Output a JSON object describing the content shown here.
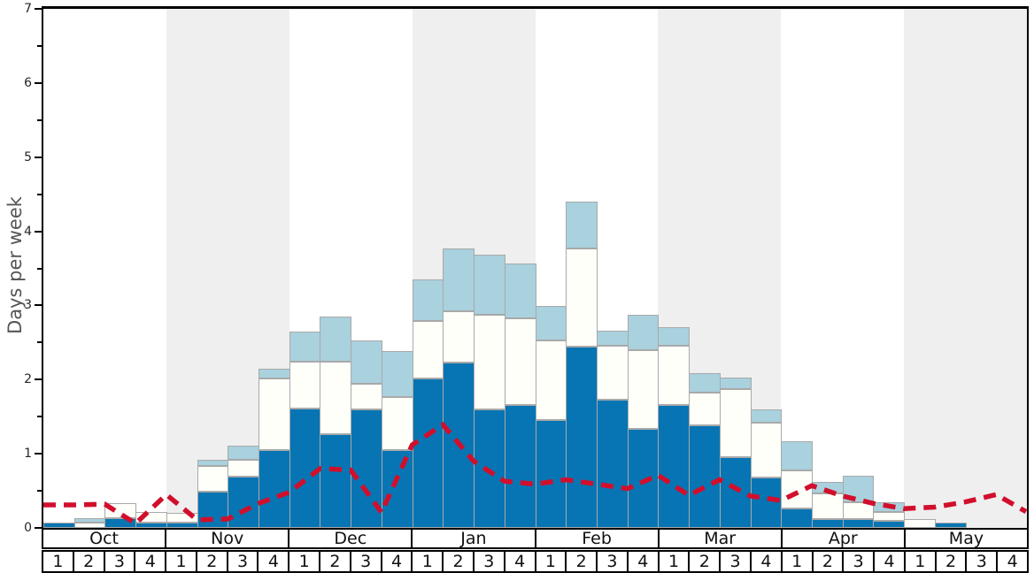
{
  "chart_data": {
    "type": "bar",
    "subtype": "stacked-bar-with-dashed-line-overlay",
    "title": "",
    "xlabel": "",
    "ylabel": "Days per week",
    "ylim": [
      0,
      7
    ],
    "yticks_major": [
      0,
      1,
      2,
      3,
      4,
      5,
      6,
      7
    ],
    "yticks_minor": [
      0.5,
      1.5,
      2.5,
      3.5,
      4.5,
      5.5,
      6.5
    ],
    "grid": false,
    "legend": "none",
    "months": [
      "Oct",
      "Nov",
      "Dec",
      "Jan",
      "Feb",
      "Mar",
      "Apr",
      "May"
    ],
    "week_labels": [
      "1",
      "2",
      "3",
      "4"
    ],
    "shaded_month_indices": [
      1,
      3,
      5,
      7
    ],
    "weeks_per_month": 4,
    "series": [
      {
        "name": "dark-blue-bottom-segment",
        "color": "#0775b3",
        "values": [
          0.07,
          0,
          0.13,
          0.07,
          0.07,
          0.49,
          0.69,
          1.05,
          1.61,
          1.27,
          1.6,
          1.05,
          2.01,
          2.23,
          1.6,
          1.66,
          1.46,
          2.44,
          1.73,
          1.33,
          1.66,
          1.38,
          0.96,
          0.68,
          0.26,
          0.12,
          0.12,
          0.1,
          0,
          0.07,
          0,
          0
        ]
      },
      {
        "name": "white-middle-segment",
        "color": "#fffffa",
        "values": [
          0,
          0.07,
          0.21,
          0.14,
          0.13,
          0.35,
          0.23,
          0.97,
          0.63,
          0.97,
          0.34,
          0.71,
          0.78,
          0.69,
          1.27,
          1.17,
          1.07,
          1.33,
          0.73,
          1.07,
          0.8,
          0.44,
          0.91,
          0.74,
          0.51,
          0.34,
          0.23,
          0.11,
          0.12,
          0,
          0,
          0
        ]
      },
      {
        "name": "light-blue-top-segment",
        "color": "#a9d1de",
        "values": [
          0,
          0.06,
          0,
          0,
          0,
          0.08,
          0.19,
          0.13,
          0.41,
          0.61,
          0.59,
          0.62,
          0.56,
          0.85,
          0.82,
          0.73,
          0.46,
          0.63,
          0.2,
          0.47,
          0.25,
          0.27,
          0.16,
          0.18,
          0.4,
          0.16,
          0.35,
          0.14,
          0,
          0,
          0,
          0
        ]
      }
    ],
    "line": {
      "name": "red-dashed-line",
      "color": "#d10f2c",
      "style": "dashed",
      "x_mode": "week-boundaries",
      "values": [
        0.31,
        0.31,
        0.32,
        0.06,
        0.45,
        0.11,
        0.12,
        0.33,
        0.48,
        0.8,
        0.78,
        0.21,
        1.12,
        1.39,
        0.9,
        0.63,
        0.59,
        0.65,
        0.59,
        0.53,
        0.71,
        0.44,
        0.65,
        0.43,
        0.37,
        0.57,
        0.43,
        0.33,
        0.26,
        0.28,
        0.35,
        0.45,
        0.22
      ]
    },
    "colors": {
      "month_band": "#efefef",
      "bar_border": "#a9a9a9",
      "frame": "#000000",
      "ylabel_text": "#555555",
      "tick_text": "#262626",
      "axis_row_text": "#111111"
    }
  }
}
